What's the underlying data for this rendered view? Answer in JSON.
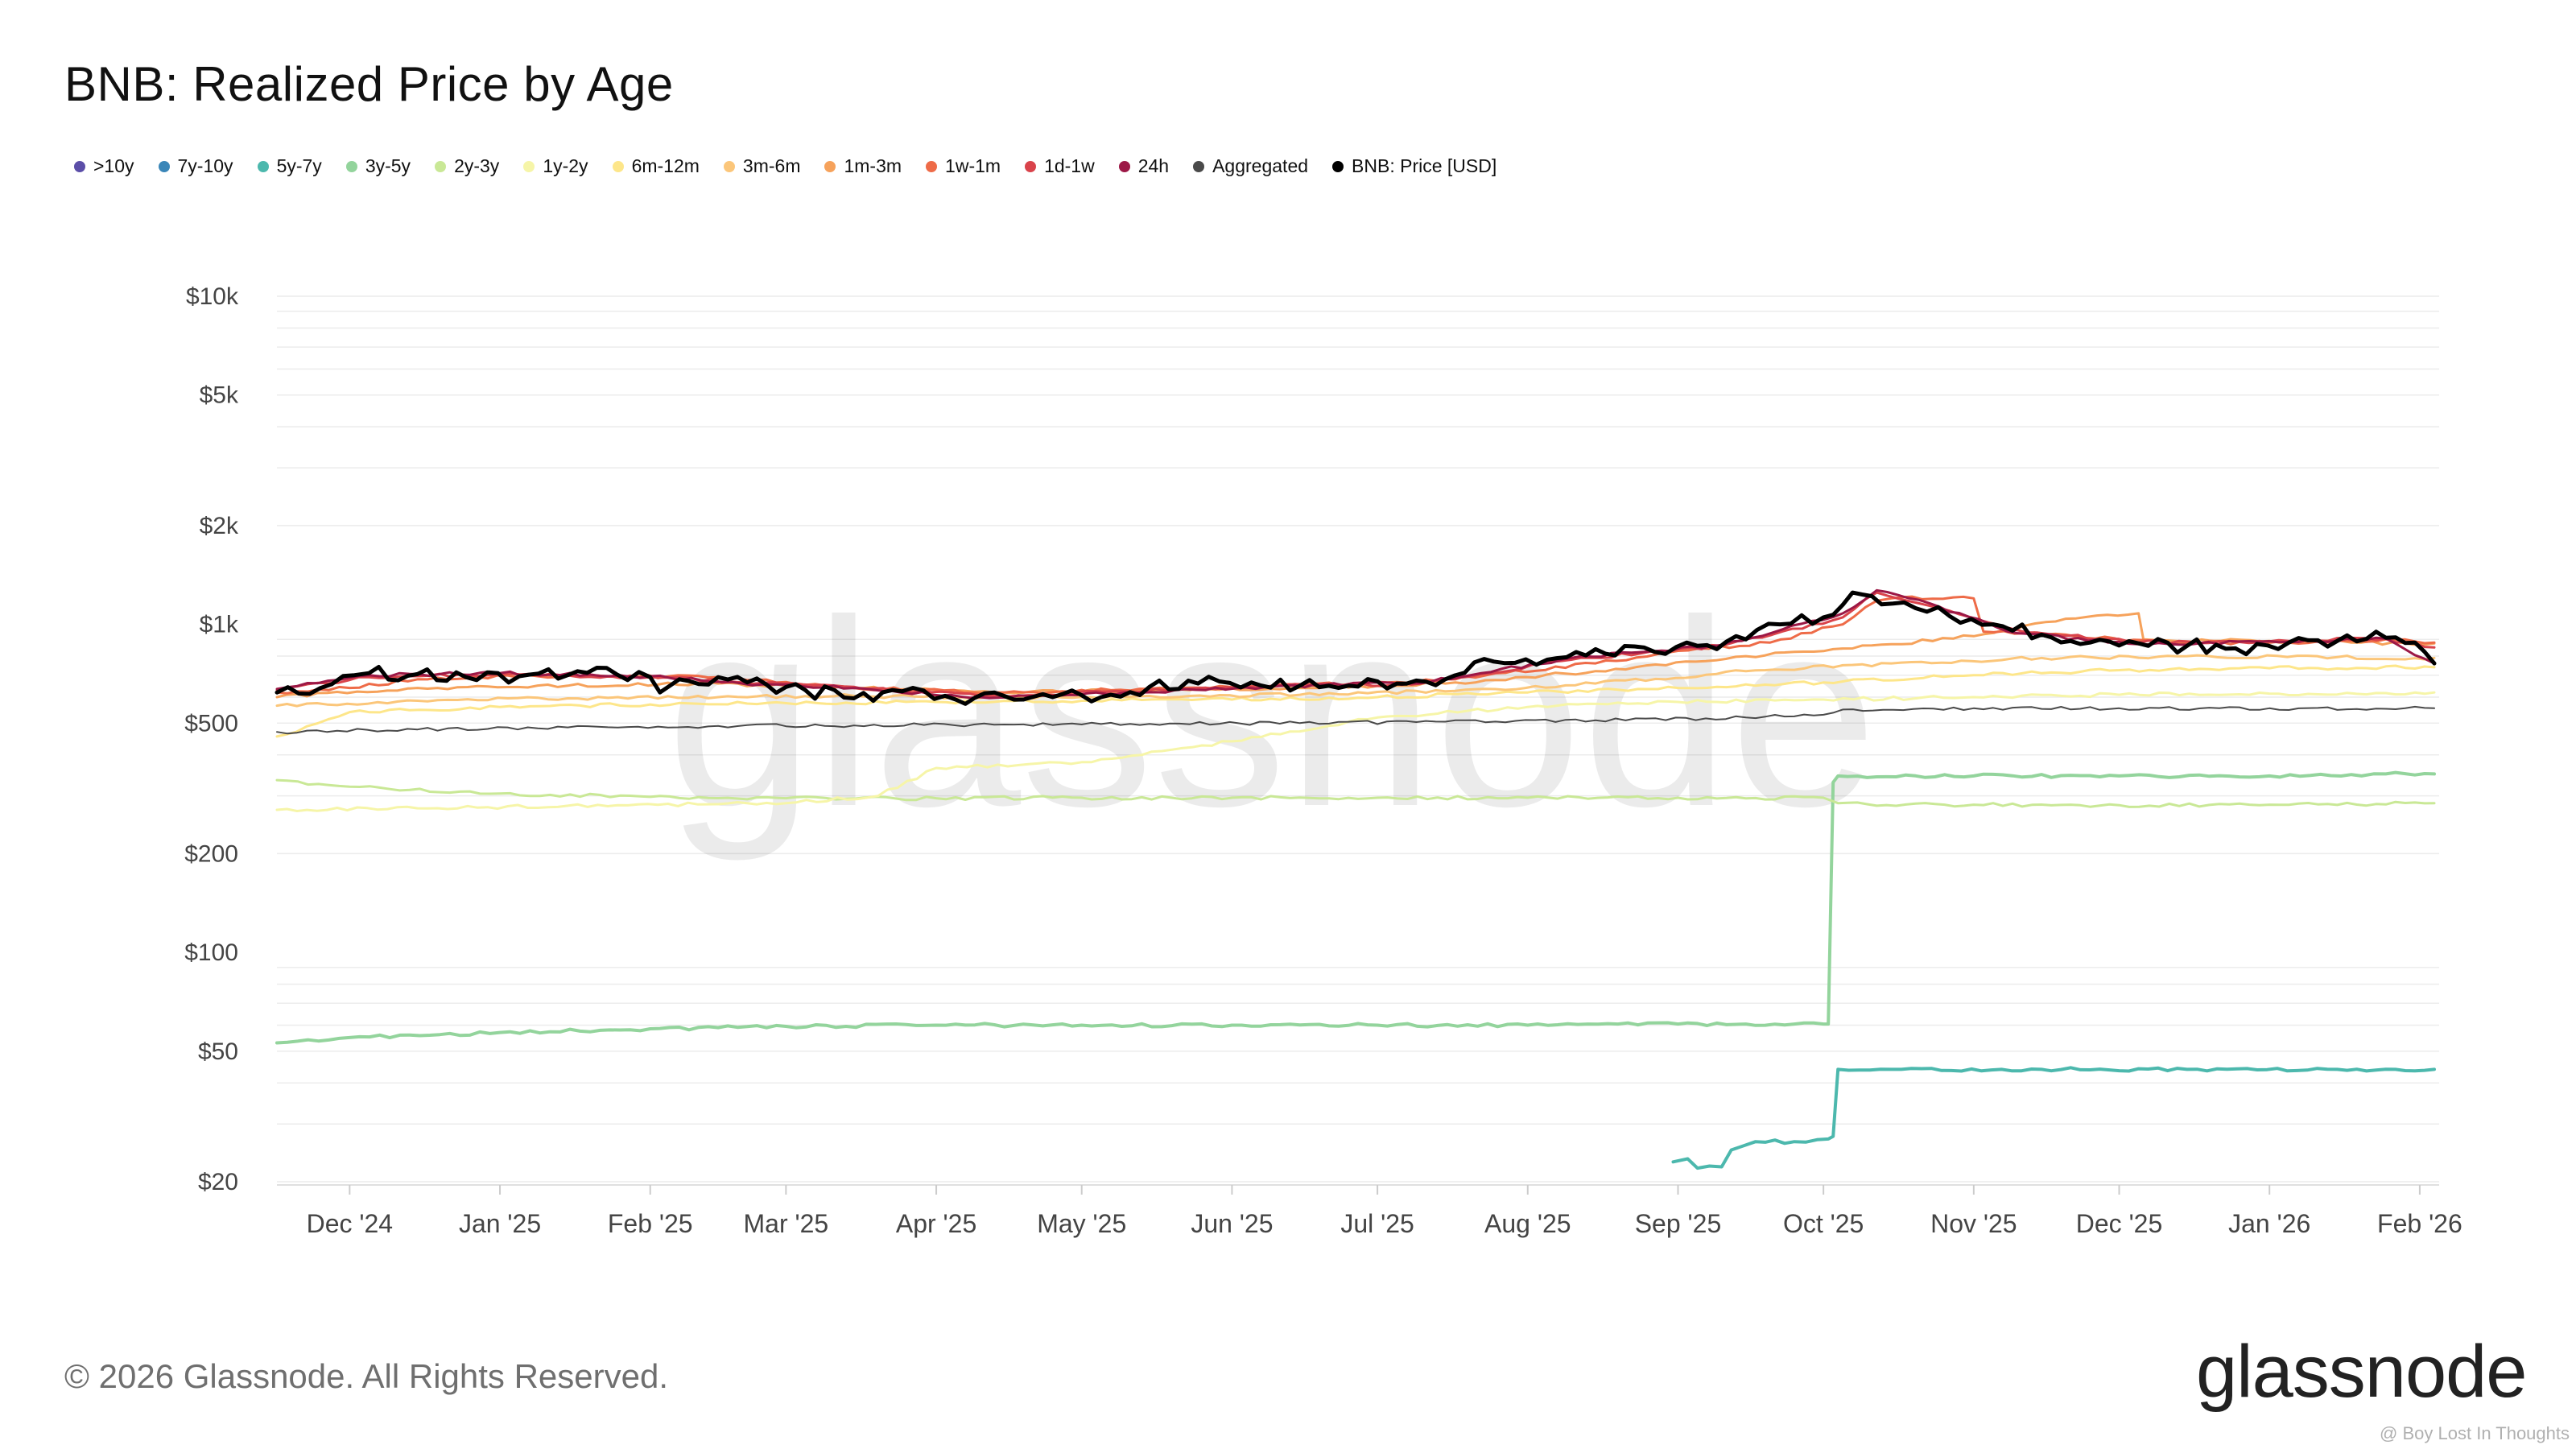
{
  "title": "BNB: Realized Price by Age",
  "footer": "© 2026 Glassnode. All Rights Reserved.",
  "brand": "glassnode",
  "watermark": "glassnode",
  "credit": "@ Boy Lost In Thoughts",
  "legend": [
    {
      "label": ">10y",
      "color": "#5b4ea8"
    },
    {
      "label": "7y-10y",
      "color": "#3a86b8"
    },
    {
      "label": "5y-7y",
      "color": "#4cb8ad"
    },
    {
      "label": "3y-5y",
      "color": "#93d49c"
    },
    {
      "label": "2y-3y",
      "color": "#c9e896"
    },
    {
      "label": "1y-2y",
      "color": "#f6f5a8"
    },
    {
      "label": "6m-12m",
      "color": "#fde68a"
    },
    {
      "label": "3m-6m",
      "color": "#fbc67a"
    },
    {
      "label": "1m-3m",
      "color": "#f6a25b"
    },
    {
      "label": "1w-1m",
      "color": "#ee6b48"
    },
    {
      "label": "1d-1w",
      "color": "#d9434b"
    },
    {
      "label": "24h",
      "color": "#9c1846"
    },
    {
      "label": "Aggregated",
      "color": "#4a4a4a"
    },
    {
      "label": "BNB: Price [USD]",
      "color": "#000000"
    }
  ],
  "chart_data": {
    "type": "line",
    "y_scale": "log",
    "ylim": [
      20,
      10000
    ],
    "xlim": [
      "2024-11-16",
      "2026-02-05"
    ],
    "y_ticks": [
      {
        "value": 20,
        "label": "$20"
      },
      {
        "value": 50,
        "label": "$50"
      },
      {
        "value": 100,
        "label": "$100"
      },
      {
        "value": 200,
        "label": "$200"
      },
      {
        "value": 500,
        "label": "$500"
      },
      {
        "value": 1000,
        "label": "$1k"
      },
      {
        "value": 2000,
        "label": "$2k"
      },
      {
        "value": 5000,
        "label": "$5k"
      },
      {
        "value": 10000,
        "label": "$10k"
      }
    ],
    "x_ticks": [
      {
        "date": "2024-12-01",
        "label": "Dec '24"
      },
      {
        "date": "2025-01-01",
        "label": "Jan '25"
      },
      {
        "date": "2025-02-01",
        "label": "Feb '25"
      },
      {
        "date": "2025-03-01",
        "label": "Mar '25"
      },
      {
        "date": "2025-04-01",
        "label": "Apr '25"
      },
      {
        "date": "2025-05-01",
        "label": "May '25"
      },
      {
        "date": "2025-06-01",
        "label": "Jun '25"
      },
      {
        "date": "2025-07-01",
        "label": "Jul '25"
      },
      {
        "date": "2025-08-01",
        "label": "Aug '25"
      },
      {
        "date": "2025-09-01",
        "label": "Sep '25"
      },
      {
        "date": "2025-10-01",
        "label": "Oct '25"
      },
      {
        "date": "2025-11-01",
        "label": "Nov '25"
      },
      {
        "date": "2025-12-01",
        "label": "Dec '25"
      },
      {
        "date": "2026-01-01",
        "label": "Jan '26"
      },
      {
        "date": "2026-02-01",
        "label": "Feb '26"
      }
    ],
    "grid": true,
    "series": [
      {
        "name": "5y-7y",
        "color": "#4cb8ad",
        "width": 4,
        "x": [
          "2025-08-31",
          "2025-09-03",
          "2025-09-05",
          "2025-09-10",
          "2025-09-12",
          "2025-09-17",
          "2025-09-25",
          "2025-10-02",
          "2025-10-03",
          "2025-10-04",
          "2025-10-15",
          "2025-11-15",
          "2025-12-15",
          "2026-01-15",
          "2026-02-04"
        ],
        "y": [
          23,
          23.5,
          22,
          22.2,
          25,
          26.5,
          26.5,
          27,
          27.5,
          44,
          44,
          44,
          44,
          44,
          44
        ]
      },
      {
        "name": "3y-5y",
        "color": "#93d49c",
        "width": 4,
        "x": [
          "2024-11-16",
          "2024-12-01",
          "2025-01-01",
          "2025-02-01",
          "2025-03-01",
          "2025-04-01",
          "2025-05-01",
          "2025-06-01",
          "2025-07-01",
          "2025-08-01",
          "2025-09-01",
          "2025-09-25",
          "2025-10-01",
          "2025-10-02",
          "2025-10-03",
          "2025-10-04",
          "2025-11-01",
          "2025-12-01",
          "2026-01-01",
          "2026-01-20",
          "2026-01-25",
          "2026-02-04"
        ],
        "y": [
          53,
          55,
          57,
          58.5,
          59.5,
          60,
          60,
          60,
          60,
          60,
          60.5,
          60.5,
          60.5,
          60.5,
          330,
          345,
          345,
          345,
          345,
          345,
          350,
          350
        ]
      },
      {
        "name": "2y-3y",
        "color": "#c9e896",
        "width": 3,
        "x": [
          "2024-11-16",
          "2024-12-01",
          "2025-01-01",
          "2025-02-01",
          "2025-03-01",
          "2025-04-01",
          "2025-05-01",
          "2025-06-01",
          "2025-07-01",
          "2025-08-01",
          "2025-09-01",
          "2025-10-01",
          "2025-10-04",
          "2025-10-10",
          "2025-11-01",
          "2025-12-01",
          "2026-01-01",
          "2026-02-04"
        ],
        "y": [
          335,
          320,
          305,
          298,
          295,
          295,
          296,
          296,
          296,
          296,
          296,
          296,
          285,
          283,
          282,
          281,
          282,
          285
        ]
      },
      {
        "name": "1y-2y",
        "color": "#f6f5a8",
        "width": 3,
        "x": [
          "2024-11-16",
          "2024-12-15",
          "2025-01-15",
          "2025-02-15",
          "2025-03-01",
          "2025-03-20",
          "2025-04-01",
          "2025-04-20",
          "2025-05-01",
          "2025-06-01",
          "2025-07-01",
          "2025-08-01",
          "2025-09-01",
          "2025-10-01",
          "2025-11-01",
          "2025-12-01",
          "2026-01-01",
          "2026-02-04"
        ],
        "y": [
          272,
          275,
          280,
          283,
          285,
          300,
          365,
          375,
          380,
          440,
          520,
          560,
          580,
          590,
          600,
          610,
          615,
          620
        ]
      },
      {
        "name": "6m-12m",
        "color": "#fde68a",
        "width": 3,
        "x": [
          "2024-11-16",
          "2024-11-20",
          "2024-12-01",
          "2025-01-01",
          "2025-02-01",
          "2025-03-01",
          "2025-04-01",
          "2025-05-01",
          "2025-06-01",
          "2025-07-01",
          "2025-08-01",
          "2025-09-01",
          "2025-10-01",
          "2025-11-01",
          "2025-12-01",
          "2026-01-01",
          "2026-02-04"
        ],
        "y": [
          455,
          470,
          540,
          560,
          570,
          575,
          580,
          585,
          590,
          600,
          620,
          640,
          665,
          700,
          725,
          735,
          740
        ]
      },
      {
        "name": "3m-6m",
        "color": "#fbc67a",
        "width": 3,
        "x": [
          "2024-11-16",
          "2024-12-15",
          "2025-01-15",
          "2025-02-15",
          "2025-03-15",
          "2025-04-15",
          "2025-05-15",
          "2025-06-15",
          "2025-07-15",
          "2025-08-15",
          "2025-09-15",
          "2025-10-15",
          "2025-11-15",
          "2025-12-15",
          "2026-01-15",
          "2026-02-04"
        ],
        "y": [
          565,
          585,
          595,
          600,
          605,
          600,
          605,
          610,
          625,
          660,
          720,
          760,
          790,
          800,
          795,
          790
        ]
      },
      {
        "name": "1m-3m",
        "color": "#f6a25b",
        "width": 3,
        "x": [
          "2024-11-16",
          "2024-12-15",
          "2025-01-15",
          "2025-02-15",
          "2025-03-15",
          "2025-04-15",
          "2025-05-15",
          "2025-06-15",
          "2025-07-15",
          "2025-08-15",
          "2025-09-15",
          "2025-10-15",
          "2025-11-01",
          "2025-11-20",
          "2025-12-05",
          "2025-12-06",
          "2026-01-01",
          "2026-01-20",
          "2026-02-04"
        ],
        "y": [
          600,
          640,
          650,
          660,
          640,
          620,
          630,
          640,
          660,
          720,
          800,
          870,
          920,
          1040,
          1080,
          900,
          890,
          880,
          875
        ]
      },
      {
        "name": "1w-1m",
        "color": "#ee6b48",
        "width": 3,
        "x": [
          "2024-11-16",
          "2024-12-01",
          "2024-12-15",
          "2025-01-15",
          "2025-02-15",
          "2025-03-15",
          "2025-04-15",
          "2025-05-15",
          "2025-06-15",
          "2025-07-15",
          "2025-08-15",
          "2025-09-01",
          "2025-09-20",
          "2025-10-05",
          "2025-10-12",
          "2025-10-15",
          "2025-11-01",
          "2025-11-03",
          "2025-11-20",
          "2025-12-10",
          "2026-01-05",
          "2026-01-25",
          "2026-02-04"
        ],
        "y": [
          620,
          640,
          680,
          700,
          690,
          640,
          620,
          635,
          650,
          680,
          760,
          830,
          880,
          1000,
          1180,
          1200,
          1200,
          950,
          930,
          880,
          880,
          900,
          880
        ]
      },
      {
        "name": "1d-1w",
        "color": "#d9434b",
        "width": 3,
        "x": [
          "2024-11-16",
          "2024-12-05",
          "2025-01-01",
          "2025-02-01",
          "2025-02-20",
          "2025-03-15",
          "2025-04-10",
          "2025-05-10",
          "2025-06-10",
          "2025-07-10",
          "2025-08-10",
          "2025-09-10",
          "2025-10-05",
          "2025-10-12",
          "2025-10-25",
          "2025-11-10",
          "2025-12-05",
          "2026-01-05",
          "2026-01-25",
          "2026-02-04"
        ],
        "y": [
          630,
          690,
          705,
          690,
          665,
          645,
          605,
          625,
          650,
          660,
          780,
          860,
          1050,
          1250,
          1120,
          960,
          880,
          890,
          905,
          850
        ]
      },
      {
        "name": "24h",
        "color": "#9c1846",
        "width": 3,
        "x": [
          "2024-11-16",
          "2024-12-05",
          "2025-01-01",
          "2025-02-01",
          "2025-02-20",
          "2025-03-15",
          "2025-04-10",
          "2025-05-10",
          "2025-06-10",
          "2025-07-10",
          "2025-08-10",
          "2025-09-10",
          "2025-10-05",
          "2025-10-12",
          "2025-10-25",
          "2025-11-10",
          "2025-12-05",
          "2026-01-05",
          "2026-01-25",
          "2026-02-04"
        ],
        "y": [
          635,
          700,
          710,
          695,
          660,
          640,
          600,
          620,
          648,
          662,
          790,
          865,
          1080,
          1270,
          1130,
          940,
          870,
          885,
          905,
          760
        ]
      },
      {
        "name": "Aggregated",
        "color": "#4a4a4a",
        "width": 2,
        "x": [
          "2024-11-16",
          "2024-12-15",
          "2025-01-15",
          "2025-02-15",
          "2025-03-15",
          "2025-04-15",
          "2025-05-15",
          "2025-06-15",
          "2025-07-15",
          "2025-08-15",
          "2025-09-15",
          "2025-10-01",
          "2025-10-05",
          "2025-11-01",
          "2025-12-01",
          "2026-01-01",
          "2026-02-04"
        ],
        "y": [
          470,
          478,
          485,
          490,
          492,
          495,
          497,
          500,
          505,
          510,
          520,
          530,
          550,
          555,
          555,
          555,
          555
        ]
      },
      {
        "name": "BNB: Price [USD]",
        "color": "#000000",
        "width": 5,
        "x": [
          "2024-11-16",
          "2024-11-25",
          "2024-12-02",
          "2024-12-05",
          "2024-12-15",
          "2024-12-25",
          "2025-01-05",
          "2025-01-15",
          "2025-01-25",
          "2025-02-01",
          "2025-02-03",
          "2025-02-07",
          "2025-02-15",
          "2025-02-25",
          "2025-03-05",
          "2025-03-15",
          "2025-03-25",
          "2025-04-05",
          "2025-04-15",
          "2025-04-25",
          "2025-05-05",
          "2025-05-15",
          "2025-05-25",
          "2025-06-05",
          "2025-06-15",
          "2025-06-25",
          "2025-07-05",
          "2025-07-15",
          "2025-07-25",
          "2025-08-05",
          "2025-08-15",
          "2025-08-25",
          "2025-09-05",
          "2025-09-15",
          "2025-09-22",
          "2025-10-01",
          "2025-10-07",
          "2025-10-13",
          "2025-10-20",
          "2025-10-27",
          "2025-11-05",
          "2025-11-15",
          "2025-11-25",
          "2025-12-05",
          "2025-12-15",
          "2025-12-25",
          "2026-01-05",
          "2026-01-15",
          "2026-01-25",
          "2026-01-31",
          "2026-02-04"
        ],
        "y": [
          620,
          640,
          700,
          710,
          705,
          690,
          695,
          700,
          705,
          690,
          620,
          680,
          690,
          655,
          630,
          595,
          625,
          590,
          605,
          600,
          600,
          645,
          660,
          665,
          650,
          650,
          660,
          680,
          770,
          780,
          840,
          850,
          860,
          900,
          1000,
          1050,
          1250,
          1150,
          1120,
          1060,
          1000,
          930,
          880,
          875,
          860,
          845,
          880,
          890,
          910,
          880,
          760
        ]
      }
    ]
  }
}
